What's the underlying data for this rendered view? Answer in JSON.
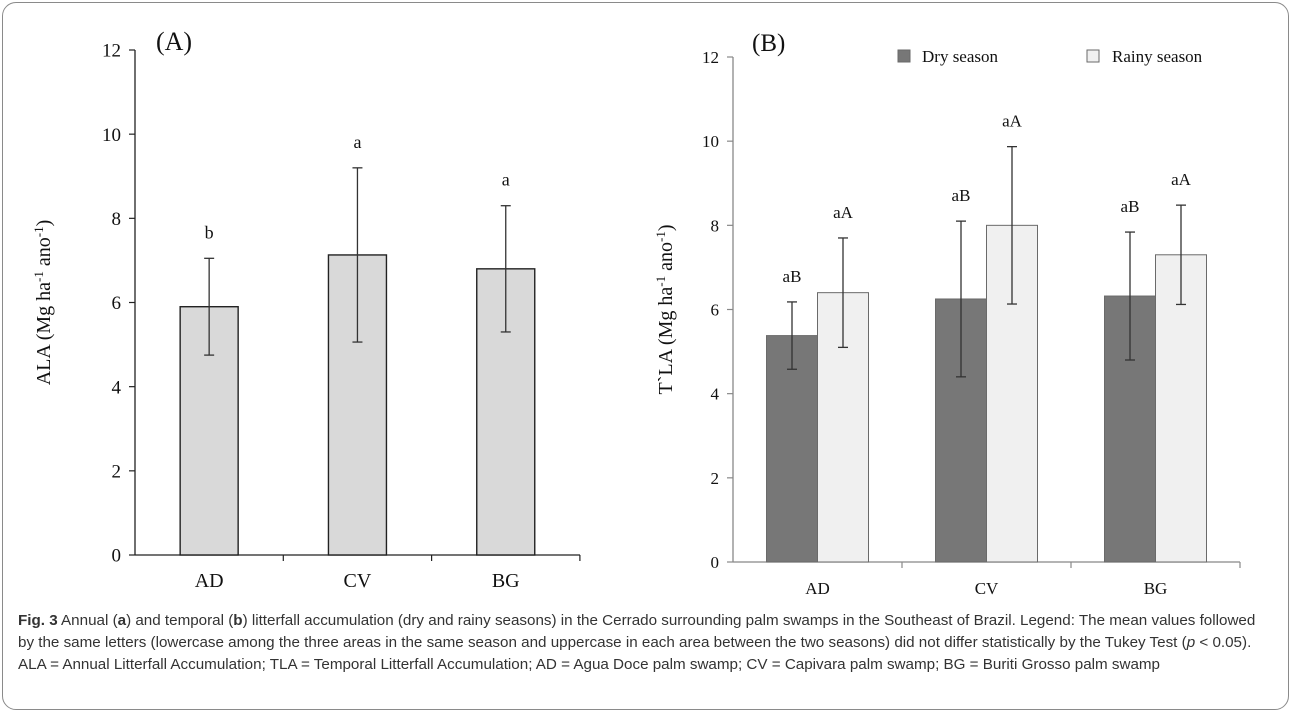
{
  "chart_data": [
    {
      "type": "bar",
      "panel_label": "(A)",
      "ylabel": "ALA (Mg ha-1 ano-1)",
      "ylabel_parts": {
        "main": "ALA  (Mg ha",
        "sup1": "-1",
        "mid": " ano",
        "sup2": "-1",
        "end": ")"
      },
      "ylim": [
        0,
        12
      ],
      "yticks": [
        0,
        2,
        4,
        6,
        8,
        10,
        12
      ],
      "categories": [
        "AD",
        "CV",
        "BG"
      ],
      "series": [
        {
          "values": [
            5.9,
            7.13,
            6.8
          ],
          "errors": [
            1.15,
            2.07,
            1.5
          ],
          "color": "#d9d9d9",
          "labels": [
            "b",
            "a",
            "a"
          ]
        }
      ],
      "grid": false
    },
    {
      "type": "bar",
      "panel_label": "(B)",
      "ylabel": "T`LA (Mg ha-1 ano-1)",
      "ylabel_parts": {
        "main": "T`LA  (Mg ha",
        "sup1": "-1",
        "mid": " ano",
        "sup2": "-1",
        "end": ")"
      },
      "ylim": [
        0,
        12
      ],
      "yticks": [
        0,
        2,
        4,
        6,
        8,
        10,
        12
      ],
      "categories": [
        "AD",
        "CV",
        "BG"
      ],
      "legend_position": "top",
      "series": [
        {
          "name": "Dry season",
          "values": [
            5.38,
            6.25,
            6.32
          ],
          "errors": [
            0.8,
            1.85,
            1.52
          ],
          "color": "#777777",
          "labels": [
            "aB",
            "aB",
            "aB"
          ]
        },
        {
          "name": "Rainy season",
          "values": [
            6.4,
            8.0,
            7.3
          ],
          "errors": [
            1.3,
            1.87,
            1.18
          ],
          "color": "#f0f0f0",
          "labels": [
            "aA",
            "aA",
            "aA"
          ]
        }
      ],
      "grid": false
    }
  ],
  "caption": {
    "label": "Fig. 3",
    "t1": " Annual (",
    "a": "a",
    "t2": ") and temporal (",
    "b": "b",
    "t3": ") litterfall accumulation (dry and rainy seasons) in the Cerrado surrounding palm swamps in the Southeast of Brazil. Legend: The mean values followed by the same letters (lowercase among the three areas in the same season and uppercase in each area between the two seasons) did not differ statistically by the Tukey Test (",
    "p": "p",
    "t4": " < 0.05). ALA = Annual Litterfall Accumulation; TLA = Temporal Litterfall Accumulation; AD = Agua Doce palm swamp; CV = Capivara palm swamp; BG = Buriti Grosso palm swamp"
  }
}
